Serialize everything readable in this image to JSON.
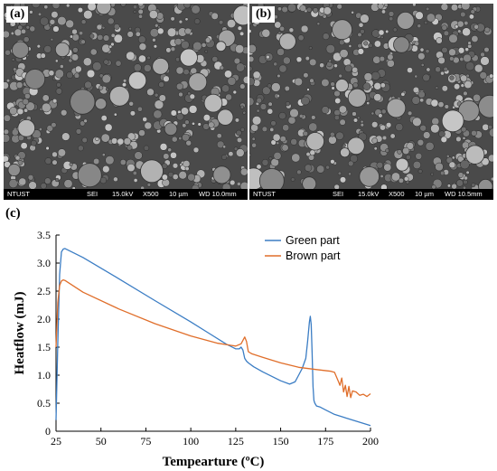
{
  "figure": {
    "panel_a_label": "(a)",
    "panel_b_label": "(b)",
    "panel_c_label": "(c)"
  },
  "sem_a": {
    "org": "NTUST",
    "mode": "SEI",
    "voltage": "15.0kV",
    "mag": "X500",
    "scale": "10 µm",
    "wd": "WD 10.0mm"
  },
  "sem_b": {
    "org": "NTUST",
    "mode": "SEI",
    "voltage": "15.0kV",
    "mag": "X500",
    "scale": "10 µm",
    "wd": "WD 10.5mm"
  },
  "chart_data": {
    "type": "line",
    "title": "",
    "xlabel": "Tempearture (ºC)",
    "ylabel": "Heatflow (mJ)",
    "xlim": [
      25,
      200
    ],
    "ylim": [
      0,
      3.5
    ],
    "xticks": [
      25,
      50,
      75,
      100,
      125,
      150,
      175,
      200
    ],
    "yticks": [
      0,
      0.5,
      1.0,
      1.5,
      2.0,
      2.5,
      3.0,
      3.5
    ],
    "ytick_labels": [
      "0",
      "0.5",
      "1.0",
      "1.5",
      "2.0",
      "2.5",
      "3.0",
      "3.5"
    ],
    "grid": false,
    "legend_position": "top-right",
    "series": [
      {
        "name": "Green part",
        "color": "#3b7dc4",
        "x": [
          25,
          26,
          27,
          28,
          29,
          30,
          40,
          60,
          80,
          100,
          110,
          120,
          125,
          127,
          128,
          129,
          130,
          131,
          132,
          135,
          140,
          150,
          155,
          158,
          160,
          162,
          164,
          165,
          166,
          166.5,
          167,
          167.5,
          168,
          168.5,
          169,
          170,
          172,
          175,
          180,
          190,
          200
        ],
        "y": [
          0.2,
          1.6,
          2.8,
          3.2,
          3.25,
          3.26,
          3.1,
          2.72,
          2.33,
          1.95,
          1.75,
          1.55,
          1.47,
          1.47,
          1.5,
          1.45,
          1.3,
          1.25,
          1.22,
          1.15,
          1.06,
          0.9,
          0.84,
          0.88,
          1.0,
          1.12,
          1.3,
          1.6,
          1.95,
          2.05,
          1.9,
          1.4,
          0.8,
          0.55,
          0.5,
          0.45,
          0.43,
          0.38,
          0.3,
          0.2,
          0.1
        ]
      },
      {
        "name": "Brown part",
        "color": "#e06e2a",
        "x": [
          25,
          26,
          27,
          28,
          29,
          30,
          40,
          60,
          80,
          100,
          115,
          125,
          128,
          130,
          131,
          132,
          134,
          140,
          150,
          160,
          170,
          178,
          180,
          182,
          183,
          184,
          185,
          186,
          187,
          188,
          189,
          190,
          192,
          194,
          196,
          198,
          200
        ],
        "y": [
          1.5,
          2.3,
          2.6,
          2.68,
          2.7,
          2.69,
          2.48,
          2.18,
          1.92,
          1.7,
          1.57,
          1.52,
          1.56,
          1.68,
          1.6,
          1.42,
          1.38,
          1.32,
          1.22,
          1.14,
          1.1,
          1.07,
          1.05,
          0.9,
          0.82,
          0.95,
          0.7,
          0.82,
          0.62,
          0.8,
          0.6,
          0.72,
          0.7,
          0.64,
          0.66,
          0.62,
          0.67
        ]
      }
    ]
  }
}
